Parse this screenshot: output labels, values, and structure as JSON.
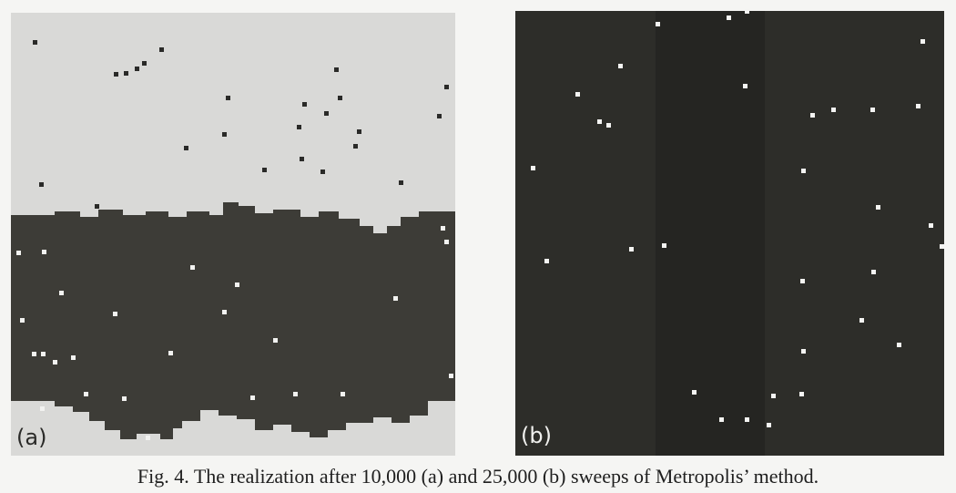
{
  "panels": [
    {
      "label": "(a)"
    },
    {
      "label": "(b)"
    }
  ],
  "caption": "Fig. 4. The realization after 10,000 (a) and 25,000 (b) sweeps of Metropolis’ method."
}
